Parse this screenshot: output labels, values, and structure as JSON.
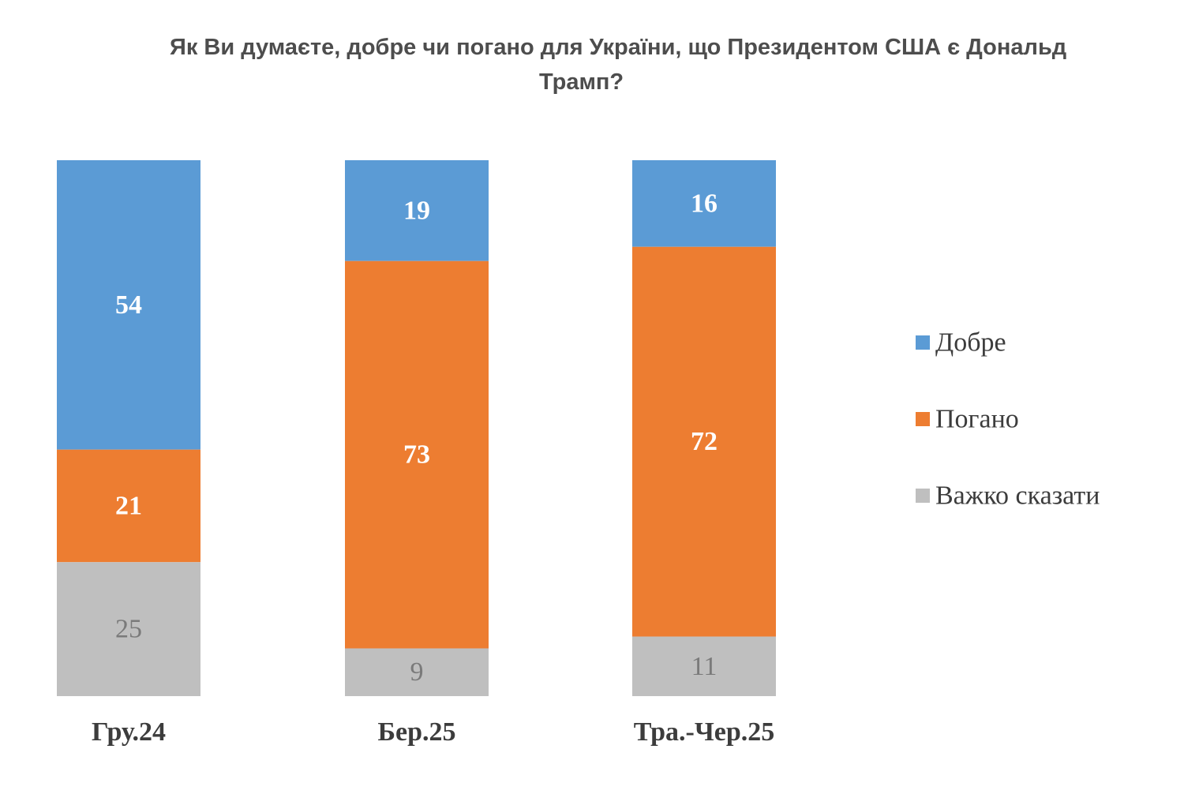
{
  "chart_data": {
    "type": "bar",
    "stacked": true,
    "percent_stacked": true,
    "title_line1": "Як Ви думаєте, добре чи погано для України, що Президентом США є Дональд",
    "title_line2": "Трамп?",
    "categories": [
      "Гру.24",
      "Бер.25",
      "Тра.-Чер.25"
    ],
    "series": [
      {
        "name": "Добре",
        "values": [
          54,
          19,
          16
        ],
        "color": "#5b9bd5"
      },
      {
        "name": "Погано",
        "values": [
          21,
          73,
          72
        ],
        "color": "#ed7d31"
      },
      {
        "name": "Важко сказати",
        "values": [
          25,
          9,
          11
        ],
        "color": "#bfbfbf"
      }
    ],
    "legend_position": "right",
    "grid": false
  }
}
